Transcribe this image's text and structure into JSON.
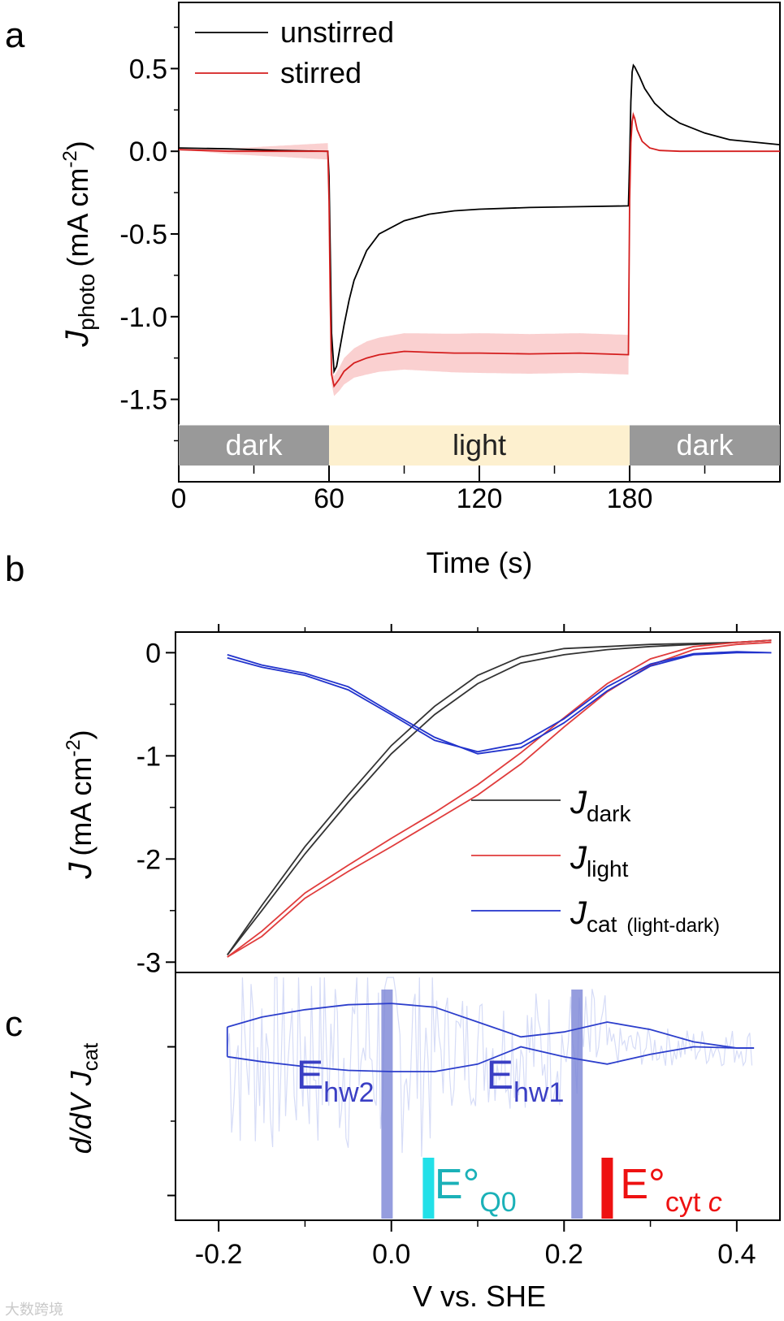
{
  "watermark": "大数跨境",
  "chart_data": [
    {
      "panel": "a",
      "type": "line",
      "xlabel": "Time (s)",
      "ylabel_main": "J",
      "ylabel_sub": "photo",
      "ylabel_unit_open": "(mA cm",
      "ylabel_unit_sup": "-2",
      "ylabel_unit_close": ")",
      "xlim": [
        0,
        240
      ],
      "ylim": [
        -1.9,
        0.9
      ],
      "xticks": [
        0,
        60,
        120,
        180
      ],
      "xtick_labels": [
        "0",
        "60",
        "120",
        "180"
      ],
      "yticks": [
        0.5,
        0.0,
        -0.5,
        -1.0,
        -1.5
      ],
      "ytick_labels": [
        "0.5",
        "0.0",
        "-0.5",
        "-1.0",
        "-1.5"
      ],
      "legend_position": "top-left",
      "bands": [
        {
          "label": "dark",
          "x": [
            0,
            60
          ],
          "color": "#999999",
          "text_color": "#ffffff"
        },
        {
          "label": "light",
          "x": [
            60,
            180
          ],
          "color": "#fdf0cf",
          "text_color": "#222222"
        },
        {
          "label": "dark",
          "x": [
            180,
            240
          ],
          "color": "#999999",
          "text_color": "#ffffff"
        }
      ],
      "series": [
        {
          "name": "unstirred",
          "color": "#000000",
          "x": [
            0,
            20,
            40,
            59.5,
            60,
            60.5,
            61,
            62,
            63,
            64,
            66,
            68,
            70,
            75,
            80,
            90,
            100,
            110,
            120,
            140,
            160,
            179.5,
            180,
            180.5,
            181,
            181.5,
            182,
            184,
            186,
            190,
            195,
            200,
            210,
            220,
            240
          ],
          "y": [
            0.02,
            0.015,
            0.005,
            0.0,
            -0.15,
            -0.6,
            -1.1,
            -1.33,
            -1.3,
            -1.22,
            -1.05,
            -0.9,
            -0.78,
            -0.6,
            -0.5,
            -0.42,
            -0.38,
            -0.36,
            -0.35,
            -0.34,
            -0.335,
            -0.33,
            -0.05,
            0.3,
            0.48,
            0.52,
            0.51,
            0.45,
            0.38,
            0.29,
            0.22,
            0.17,
            0.11,
            0.07,
            0.04
          ]
        },
        {
          "name": "stirred",
          "color": "#d41e1e",
          "band_color": "#f7b0b0",
          "band_halfwidth": [
            0.0,
            0.05,
            0.06,
            0.08,
            0.1,
            0.11,
            0.12,
            0.12,
            0.0
          ],
          "band_x": [
            0,
            60,
            62,
            66,
            75,
            90,
            120,
            179.5,
            182
          ],
          "x": [
            0,
            20,
            40,
            59.5,
            60,
            60.5,
            61,
            62,
            64,
            66,
            70,
            75,
            80,
            90,
            100,
            110,
            120,
            140,
            160,
            179.5,
            180,
            180.5,
            181,
            181.5,
            182,
            183,
            185,
            188,
            192,
            200,
            240
          ],
          "y": [
            0.01,
            0.0,
            0.0,
            0.0,
            -0.3,
            -0.9,
            -1.35,
            -1.42,
            -1.38,
            -1.33,
            -1.28,
            -1.25,
            -1.23,
            -1.21,
            -1.215,
            -1.22,
            -1.22,
            -1.225,
            -1.22,
            -1.23,
            -0.3,
            0.05,
            0.18,
            0.22,
            0.2,
            0.13,
            0.06,
            0.02,
            0.005,
            0.0,
            0.0
          ]
        }
      ]
    },
    {
      "panel": "b",
      "type": "line",
      "xlabel": "",
      "ylabel_main": "J",
      "ylabel_unit_open": "(mA cm",
      "ylabel_unit_sup": "-2",
      "ylabel_unit_close": ")",
      "xlim": [
        -0.25,
        0.45
      ],
      "ylim": [
        -3.1,
        0.2
      ],
      "yticks": [
        0,
        -1,
        -2,
        -3
      ],
      "ytick_labels": [
        "0",
        "-1",
        "-2",
        "-3"
      ],
      "xticks": [
        -0.2,
        0.0,
        0.2,
        0.4
      ],
      "legend_position": "bottom-right",
      "series": [
        {
          "name_main": "J",
          "name_sub": "dark",
          "name_extra": "",
          "color": "#333333",
          "x": [
            -0.19,
            -0.15,
            -0.1,
            -0.05,
            0.0,
            0.05,
            0.1,
            0.15,
            0.2,
            0.25,
            0.3,
            0.35,
            0.4,
            0.44
          ],
          "y": [
            -2.93,
            -2.5,
            -1.95,
            -1.45,
            -0.98,
            -0.6,
            -0.3,
            -0.1,
            -0.02,
            0.03,
            0.06,
            0.08,
            0.1,
            0.12
          ],
          "y_ret": [
            -2.93,
            -2.45,
            -1.88,
            -1.38,
            -0.9,
            -0.52,
            -0.22,
            -0.04,
            0.04,
            0.06,
            0.08,
            0.09,
            0.1,
            0.12
          ]
        },
        {
          "name_main": "J",
          "name_sub": "light",
          "name_extra": "",
          "color": "#e03c3c",
          "x": [
            -0.19,
            -0.15,
            -0.1,
            -0.05,
            0.0,
            0.05,
            0.1,
            0.15,
            0.2,
            0.25,
            0.3,
            0.35,
            0.4,
            0.44
          ],
          "y": [
            -2.95,
            -2.75,
            -2.38,
            -2.12,
            -1.88,
            -1.63,
            -1.38,
            -1.08,
            -0.72,
            -0.38,
            -0.12,
            0.03,
            0.08,
            0.1
          ],
          "y_ret": [
            -2.95,
            -2.7,
            -2.33,
            -2.06,
            -1.8,
            -1.55,
            -1.28,
            -0.97,
            -0.63,
            -0.3,
            -0.06,
            0.06,
            0.1,
            0.12
          ]
        },
        {
          "name_main": "J",
          "name_sub": "cat",
          "name_extra": "(light-dark)",
          "color": "#2233cc",
          "x": [
            -0.19,
            -0.15,
            -0.1,
            -0.05,
            0.0,
            0.05,
            0.1,
            0.15,
            0.2,
            0.25,
            0.3,
            0.35,
            0.4,
            0.44
          ],
          "y": [
            -0.02,
            -0.12,
            -0.2,
            -0.33,
            -0.58,
            -0.82,
            -0.98,
            -0.92,
            -0.68,
            -0.37,
            -0.13,
            -0.02,
            0.0,
            0.0
          ],
          "y_ret": [
            -0.05,
            -0.14,
            -0.22,
            -0.36,
            -0.6,
            -0.85,
            -0.96,
            -0.88,
            -0.64,
            -0.33,
            -0.11,
            -0.01,
            0.01,
            0.0
          ]
        }
      ]
    },
    {
      "panel": "c",
      "type": "line",
      "xlabel": "V vs. SHE",
      "ylabel_main": "d/dV J",
      "ylabel_sub": "cat",
      "xlim": [
        -0.25,
        0.45
      ],
      "ylim": [
        0,
        1
      ],
      "xticks": [
        -0.2,
        0.0,
        0.2,
        0.4
      ],
      "xtick_labels": [
        "-0.2",
        "0.0",
        "0.2",
        "0.4"
      ],
      "series_color": "#2d3fcc",
      "noise_color": "#d6dcf7",
      "upper_x": [
        -0.19,
        -0.15,
        -0.1,
        -0.05,
        0.0,
        0.05,
        0.1,
        0.15,
        0.2,
        0.25,
        0.3,
        0.35,
        0.4,
        0.42
      ],
      "upper_y": [
        0.78,
        0.82,
        0.85,
        0.87,
        0.875,
        0.86,
        0.8,
        0.74,
        0.76,
        0.8,
        0.77,
        0.72,
        0.695,
        0.695
      ],
      "lower_x": [
        -0.19,
        -0.15,
        -0.1,
        -0.05,
        0.0,
        0.05,
        0.1,
        0.15,
        0.2,
        0.25,
        0.3,
        0.35,
        0.4,
        0.42
      ],
      "lower_y": [
        0.66,
        0.64,
        0.62,
        0.605,
        0.6,
        0.6,
        0.63,
        0.7,
        0.66,
        0.63,
        0.67,
        0.7,
        0.695,
        0.695
      ],
      "annotations": [
        {
          "main": "E",
          "sub": "hw2",
          "sup": "",
          "x": -0.005,
          "kind": "half-wave",
          "color": "#7b84d6",
          "text_color": "#3a3fc4",
          "label_x": -0.11
        },
        {
          "main": "E",
          "sub": "hw1",
          "sup": "",
          "x": 0.215,
          "kind": "half-wave",
          "color": "#7b84d6",
          "text_color": "#3a3fc4",
          "label_x": 0.11
        },
        {
          "main": "E°",
          "sub": "Q0",
          "sup": "",
          "x": 0.043,
          "kind": "formal",
          "color": "#22e0e8",
          "text_color": "#1bb1b8",
          "label_x": 0.05
        },
        {
          "main": "E°",
          "sub": "cyt c",
          "sup": "",
          "x": 0.25,
          "kind": "formal",
          "color": "#ee1111",
          "text_color": "#ee1111",
          "label_x": 0.265
        }
      ]
    }
  ],
  "panel_labels": [
    "a",
    "b",
    "c"
  ]
}
